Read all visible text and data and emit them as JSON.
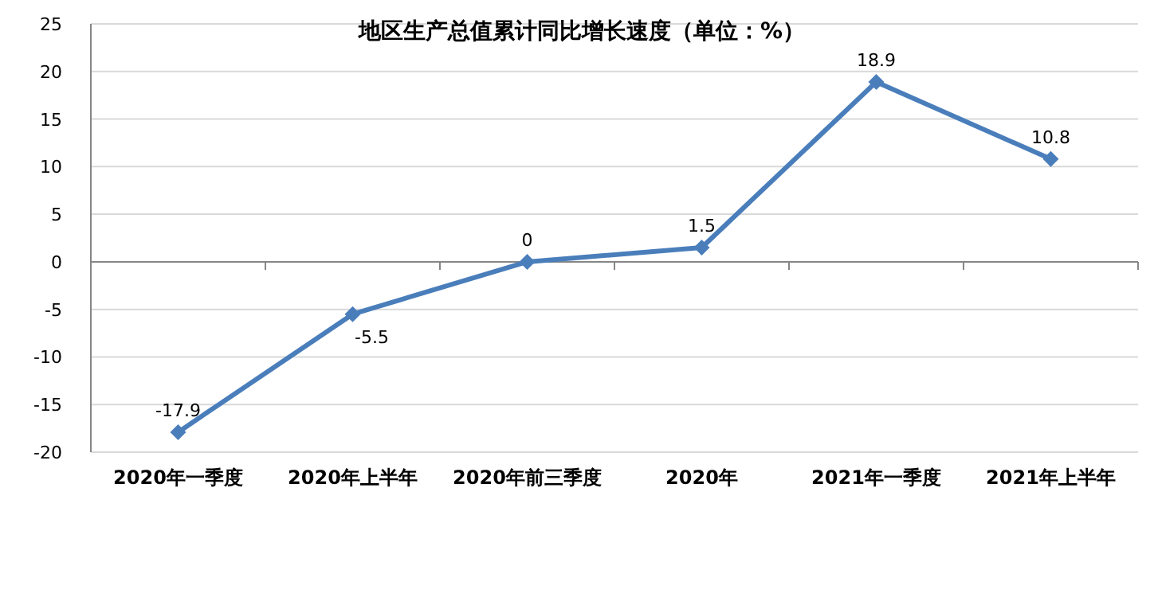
{
  "chart_data": {
    "type": "line",
    "title": "地区生产总值累计同比增长速度（单位：%）",
    "categories": [
      "2020年一季度",
      "2020年上半年",
      "2020年前三季度",
      "2020年",
      "2021年一季度",
      "2021年上半年"
    ],
    "series": [
      {
        "color": "#4a7ebb",
        "values": [
          -17.9,
          -5.5,
          0,
          1.5,
          18.9,
          10.8
        ]
      }
    ],
    "ylim": [
      -20,
      25
    ],
    "yticks": [
      -20,
      -15,
      -10,
      -5,
      0,
      5,
      10,
      15,
      20,
      25
    ],
    "grid": "y",
    "marker": "diamond",
    "line_style": "solid",
    "data_labels": true
  }
}
